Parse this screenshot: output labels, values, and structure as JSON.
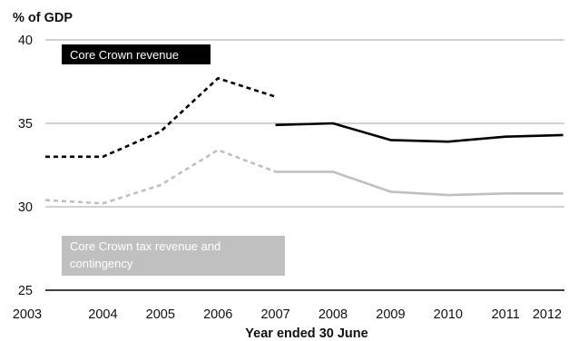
{
  "chart_data": {
    "type": "line",
    "ylabel": "% of GDP",
    "xlabel": "Year ended 30 June",
    "ylim": [
      25,
      40
    ],
    "yticks": [
      "25",
      "30",
      "35",
      "40"
    ],
    "categories": [
      "2003",
      "2004",
      "2005",
      "2006",
      "2007",
      "2008",
      "2009",
      "2010",
      "2011",
      "2012"
    ],
    "grid": "horizontal",
    "series": [
      {
        "name": "Core Crown revenue",
        "color": "#000000",
        "segments": [
          {
            "style": "dashed",
            "x": [
              "2003",
              "2004",
              "2005",
              "2006",
              "2007"
            ],
            "values": [
              33.0,
              33.0,
              34.5,
              37.7,
              36.6
            ]
          },
          {
            "style": "solid",
            "x": [
              "2007",
              "2008",
              "2009",
              "2010",
              "2011",
              "2012"
            ],
            "values": [
              34.9,
              35.0,
              34.0,
              33.9,
              34.2,
              34.3
            ]
          }
        ]
      },
      {
        "name": "Core Crown tax revenue and contingency",
        "color": "#c0c0c0",
        "segments": [
          {
            "style": "dashed",
            "x": [
              "2003",
              "2004",
              "2005",
              "2006",
              "2007"
            ],
            "values": [
              30.4,
              30.2,
              31.3,
              33.4,
              32.1
            ]
          },
          {
            "style": "solid",
            "x": [
              "2007",
              "2008",
              "2009",
              "2010",
              "2011",
              "2012"
            ],
            "values": [
              32.1,
              32.1,
              30.9,
              30.7,
              30.8,
              30.8
            ]
          }
        ]
      }
    ]
  }
}
